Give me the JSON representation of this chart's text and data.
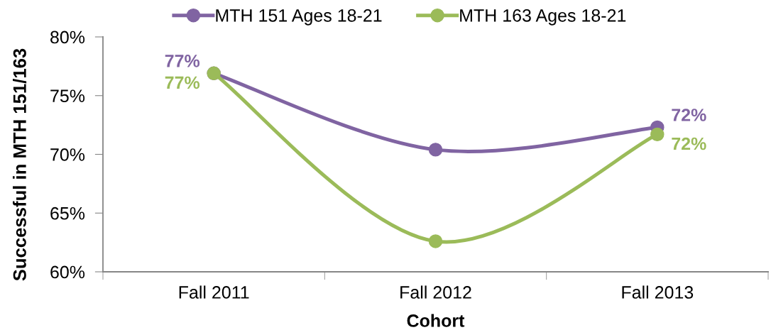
{
  "chart_data": {
    "type": "line",
    "xlabel": "Cohort",
    "ylabel": "Successful in MTH 151/163",
    "categories": [
      "Fall 2011",
      "Fall 2012",
      "Fall 2013"
    ],
    "series": [
      {
        "name": "MTH 151 Ages 18-21",
        "color": "#8064a2",
        "values": [
          76.9,
          70.4,
          72.3
        ],
        "value_labels": [
          "77%",
          null,
          "72%"
        ]
      },
      {
        "name": "MTH 163 Ages 18-21",
        "color": "#9bbb59",
        "values": [
          76.9,
          62.6,
          71.7
        ],
        "value_labels": [
          "77%",
          null,
          "72%"
        ]
      }
    ],
    "ylim": [
      60,
      80
    ],
    "yticks": [
      {
        "value": 60,
        "label": "60%"
      },
      {
        "value": 65,
        "label": "65%"
      },
      {
        "value": 70,
        "label": "70%"
      },
      {
        "value": 75,
        "label": "75%"
      },
      {
        "value": 80,
        "label": "80%"
      }
    ],
    "grid": false,
    "legend": "top",
    "marker": "circle",
    "line_style": "solid"
  }
}
